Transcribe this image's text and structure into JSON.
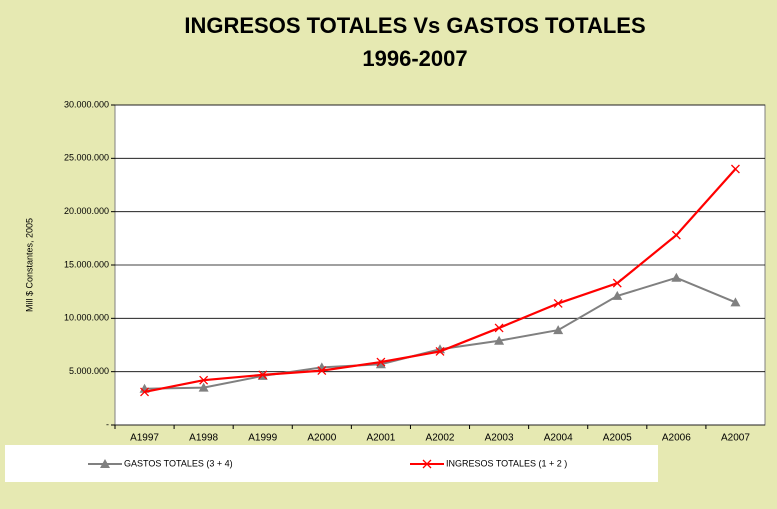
{
  "chart_data": {
    "type": "line",
    "title": "INGRESOS TOTALES Vs GASTOS TOTALES",
    "subtitle": "1996-2007",
    "y_label": "Mill $ Constantes, 2005",
    "categories": [
      "A1997",
      "A1998",
      "A1999",
      "A2000",
      "A2001",
      "A2002",
      "A2003",
      "A2004",
      "A2005",
      "A2006",
      "A2007"
    ],
    "series": [
      {
        "name": "GASTOS TOTALES (3 + 4)",
        "color": "#808080",
        "marker": "triangle",
        "values": [
          3400000,
          3500000,
          4600000,
          5400000,
          5700000,
          7100000,
          7900000,
          8900000,
          12100000,
          13800000,
          11500000
        ]
      },
      {
        "name": "INGRESOS TOTALES (1 + 2 )",
        "color": "#ff0000",
        "marker": "x",
        "values": [
          3100000,
          4200000,
          4700000,
          5100000,
          5900000,
          6900000,
          9100000,
          11400000,
          13300000,
          17800000,
          24000000
        ]
      }
    ],
    "ylim": [
      0,
      30000000
    ],
    "yticks": [
      {
        "value": 0,
        "label": "-"
      },
      {
        "value": 5000000,
        "label": "5.000.000"
      },
      {
        "value": 10000000,
        "label": "10.000.000"
      },
      {
        "value": 15000000,
        "label": "15.000.000"
      },
      {
        "value": 20000000,
        "label": "20.000.000"
      },
      {
        "value": 25000000,
        "label": "25.000.000"
      },
      {
        "value": 30000000,
        "label": "30.000.000"
      }
    ],
    "grid": true
  }
}
